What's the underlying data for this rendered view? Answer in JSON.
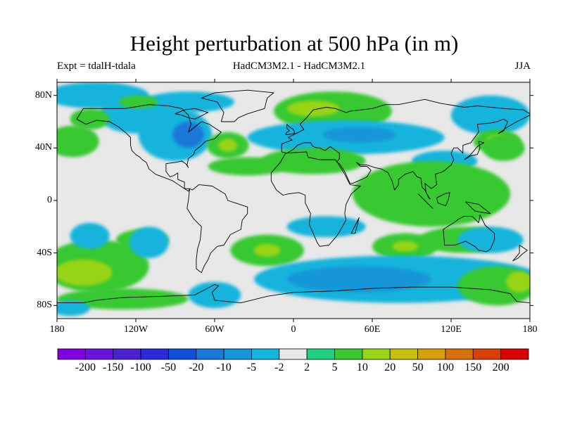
{
  "title": "Height perturbation at 500 hPa (in m)",
  "expt": "Expt = tdalH-tdala",
  "models": "HadCM3M2.1 - HadCM3M2.1",
  "season": "JJA",
  "map": {
    "lon_range": [
      -180,
      180
    ],
    "lat_range": [
      -90,
      90
    ],
    "background_color": "#e8e8e8",
    "lat_ticks": [
      {
        "value": 80,
        "label": "80N"
      },
      {
        "value": 40,
        "label": "40N"
      },
      {
        "value": 0,
        "label": "0"
      },
      {
        "value": -40,
        "label": "40S"
      },
      {
        "value": -80,
        "label": "80S"
      }
    ],
    "lon_ticks": [
      {
        "value": -180,
        "label": "180"
      },
      {
        "value": -120,
        "label": "120W"
      },
      {
        "value": -60,
        "label": "60W"
      },
      {
        "value": 0,
        "label": "0"
      },
      {
        "value": 60,
        "label": "60E"
      },
      {
        "value": 120,
        "label": "120E"
      },
      {
        "value": 180,
        "label": "180"
      }
    ]
  },
  "colorbar": {
    "colors": [
      "#8000e0",
      "#6a14d8",
      "#4b22cc",
      "#2a2ad6",
      "#1050d8",
      "#1a78d8",
      "#1496d8",
      "#14b4dc",
      "#e8e8e8",
      "#20d080",
      "#38c830",
      "#98d418",
      "#c8c010",
      "#d8a008",
      "#d87008",
      "#d84008",
      "#d80000"
    ],
    "labels": [
      "-200",
      "-150",
      "-100",
      "-50",
      "-20",
      "-10",
      "-5",
      "-2",
      "2",
      "5",
      "10",
      "20",
      "50",
      "100",
      "150",
      "200"
    ]
  },
  "field": [
    {
      "lon": -150,
      "lat": 80,
      "rx": 40,
      "ry": 10,
      "level": 7
    },
    {
      "lon": -80,
      "lat": 75,
      "rx": 35,
      "ry": 8,
      "level": 7
    },
    {
      "lon": -120,
      "lat": 65,
      "rx": 28,
      "ry": 14,
      "level": 7
    },
    {
      "lon": -90,
      "lat": 50,
      "rx": 28,
      "ry": 20,
      "level": 7
    },
    {
      "lon": -80,
      "lat": 50,
      "rx": 12,
      "ry": 10,
      "level": 5
    },
    {
      "lon": -168,
      "lat": 45,
      "rx": 20,
      "ry": 12,
      "level": 10
    },
    {
      "lon": -155,
      "lat": 62,
      "rx": 15,
      "ry": 8,
      "level": 10
    },
    {
      "lon": -118,
      "lat": 75,
      "rx": 15,
      "ry": 5,
      "level": 10
    },
    {
      "lon": -50,
      "lat": 42,
      "rx": 16,
      "ry": 10,
      "level": 10
    },
    {
      "lon": -50,
      "lat": 42,
      "rx": 7,
      "ry": 5,
      "level": 11
    },
    {
      "lon": 30,
      "lat": 68,
      "rx": 45,
      "ry": 15,
      "level": 10
    },
    {
      "lon": 15,
      "lat": 70,
      "rx": 20,
      "ry": 6,
      "level": 11
    },
    {
      "lon": 40,
      "lat": 48,
      "rx": 75,
      "ry": 13,
      "level": 7
    },
    {
      "lon": 50,
      "lat": 50,
      "rx": 28,
      "ry": 6,
      "level": 6
    },
    {
      "lon": 150,
      "lat": 65,
      "rx": 30,
      "ry": 15,
      "level": 7
    },
    {
      "lon": 155,
      "lat": 45,
      "rx": 18,
      "ry": 9,
      "level": 10
    },
    {
      "lon": 155,
      "lat": 45,
      "rx": 8,
      "ry": 5,
      "level": 11
    },
    {
      "lon": 115,
      "lat": 30,
      "rx": 25,
      "ry": 8,
      "level": 7
    },
    {
      "lon": -35,
      "lat": 26,
      "rx": 30,
      "ry": 7,
      "level": 10
    },
    {
      "lon": 15,
      "lat": 30,
      "rx": 40,
      "ry": 10,
      "level": 10
    },
    {
      "lon": 105,
      "lat": 5,
      "rx": 60,
      "ry": 25,
      "level": 10
    },
    {
      "lon": 160,
      "lat": 40,
      "rx": 16,
      "ry": 10,
      "level": 10
    },
    {
      "lon": 25,
      "lat": -20,
      "rx": 30,
      "ry": 8,
      "level": 7
    },
    {
      "lon": -150,
      "lat": -50,
      "rx": 40,
      "ry": 20,
      "level": 10
    },
    {
      "lon": -160,
      "lat": -55,
      "rx": 22,
      "ry": 10,
      "level": 11
    },
    {
      "lon": -115,
      "lat": -30,
      "rx": 20,
      "ry": 8,
      "level": 10
    },
    {
      "lon": -110,
      "lat": -32,
      "rx": 15,
      "ry": 12,
      "level": 7
    },
    {
      "lon": -155,
      "lat": -27,
      "rx": 15,
      "ry": 10,
      "level": 7
    },
    {
      "lon": -20,
      "lat": -38,
      "rx": 28,
      "ry": 12,
      "level": 10
    },
    {
      "lon": -20,
      "lat": -38,
      "rx": 10,
      "ry": 5,
      "level": 11
    },
    {
      "lon": 85,
      "lat": -35,
      "rx": 25,
      "ry": 10,
      "level": 10
    },
    {
      "lon": 85,
      "lat": -35,
      "rx": 10,
      "ry": 4,
      "level": 11
    },
    {
      "lon": 130,
      "lat": -30,
      "rx": 35,
      "ry": 10,
      "level": 10
    },
    {
      "lon": 150,
      "lat": -30,
      "rx": 25,
      "ry": 10,
      "level": 7
    },
    {
      "lon": 80,
      "lat": -60,
      "rx": 110,
      "ry": 18,
      "level": 7
    },
    {
      "lon": 50,
      "lat": -60,
      "rx": 55,
      "ry": 10,
      "level": 6
    },
    {
      "lon": 155,
      "lat": -65,
      "rx": 30,
      "ry": 15,
      "level": 10
    },
    {
      "lon": 172,
      "lat": -62,
      "rx": 10,
      "ry": 8,
      "level": 11
    },
    {
      "lon": -130,
      "lat": -75,
      "rx": 50,
      "ry": 8,
      "level": 10
    },
    {
      "lon": -60,
      "lat": -72,
      "rx": 20,
      "ry": 10,
      "level": 7
    },
    {
      "lon": -170,
      "lat": -82,
      "rx": 15,
      "ry": 6,
      "level": 7
    }
  ],
  "coastlines": [
    [
      [
        -165,
        62
      ],
      [
        -160,
        70
      ],
      [
        -140,
        70
      ],
      [
        -128,
        70
      ],
      [
        -110,
        73
      ],
      [
        -95,
        72
      ],
      [
        -85,
        70
      ],
      [
        -80,
        65
      ],
      [
        -78,
        58
      ],
      [
        -80,
        52
      ],
      [
        -70,
        60
      ],
      [
        -64,
        58
      ],
      [
        -55,
        52
      ],
      [
        -60,
        47
      ],
      [
        -67,
        45
      ],
      [
        -70,
        42
      ],
      [
        -75,
        38
      ],
      [
        -76,
        35
      ],
      [
        -80,
        32
      ],
      [
        -81,
        27
      ],
      [
        -80,
        25
      ],
      [
        -82,
        28
      ],
      [
        -85,
        30
      ],
      [
        -90,
        29
      ],
      [
        -97,
        28
      ],
      [
        -97,
        22
      ],
      [
        -94,
        18
      ],
      [
        -91,
        19
      ],
      [
        -88,
        21
      ],
      [
        -88,
        16
      ],
      [
        -83,
        14
      ],
      [
        -83,
        9
      ],
      [
        -79,
        9
      ],
      [
        -80,
        7
      ],
      [
        -86,
        11
      ],
      [
        -92,
        15
      ],
      [
        -105,
        20
      ],
      [
        -110,
        24
      ],
      [
        -112,
        29
      ],
      [
        -115,
        31
      ],
      [
        -117,
        33
      ],
      [
        -120,
        35
      ],
      [
        -123,
        38
      ],
      [
        -124,
        42
      ],
      [
        -124,
        48
      ],
      [
        -127,
        51
      ],
      [
        -133,
        56
      ],
      [
        -140,
        60
      ],
      [
        -150,
        61
      ],
      [
        -158,
        58
      ],
      [
        -165,
        62
      ]
    ],
    [
      [
        -79,
        9
      ],
      [
        -77,
        8
      ],
      [
        -72,
        12
      ],
      [
        -62,
        11
      ],
      [
        -52,
        5
      ],
      [
        -50,
        0
      ],
      [
        -44,
        -2
      ],
      [
        -35,
        -5
      ],
      [
        -35,
        -10
      ],
      [
        -39,
        -15
      ],
      [
        -40,
        -22
      ],
      [
        -48,
        -26
      ],
      [
        -53,
        -34
      ],
      [
        -58,
        -35
      ],
      [
        -63,
        -40
      ],
      [
        -65,
        -45
      ],
      [
        -68,
        -50
      ],
      [
        -70,
        -55
      ],
      [
        -74,
        -52
      ],
      [
        -74,
        -45
      ],
      [
        -73,
        -37
      ],
      [
        -71,
        -30
      ],
      [
        -70,
        -20
      ],
      [
        -76,
        -14
      ],
      [
        -81,
        -6
      ],
      [
        -80,
        0
      ],
      [
        -79,
        9
      ]
    ],
    [
      [
        -17,
        15
      ],
      [
        -17,
        21
      ],
      [
        -10,
        29
      ],
      [
        -6,
        36
      ],
      [
        10,
        37
      ],
      [
        11,
        33
      ],
      [
        20,
        31
      ],
      [
        32,
        31
      ],
      [
        34,
        28
      ],
      [
        39,
        20
      ],
      [
        43,
        12
      ],
      [
        51,
        11
      ],
      [
        44,
        5
      ],
      [
        40,
        -3
      ],
      [
        39,
        -10
      ],
      [
        40,
        -15
      ],
      [
        35,
        -24
      ],
      [
        33,
        -27
      ],
      [
        27,
        -34
      ],
      [
        20,
        -35
      ],
      [
        18,
        -32
      ],
      [
        12,
        -18
      ],
      [
        13,
        -10
      ],
      [
        9,
        -2
      ],
      [
        9,
        4
      ],
      [
        4,
        6
      ],
      [
        -4,
        5
      ],
      [
        -8,
        4
      ],
      [
        -13,
        8
      ],
      [
        -17,
        15
      ]
    ],
    [
      [
        -9,
        37
      ],
      [
        -9,
        43
      ],
      [
        -1,
        46
      ],
      [
        -4,
        48
      ],
      [
        2,
        51
      ],
      [
        8,
        54
      ],
      [
        5,
        58
      ],
      [
        10,
        63
      ],
      [
        15,
        69
      ],
      [
        25,
        71
      ],
      [
        32,
        70
      ],
      [
        40,
        67
      ],
      [
        43,
        68
      ],
      [
        60,
        70
      ],
      [
        70,
        73
      ],
      [
        80,
        73
      ],
      [
        100,
        77
      ],
      [
        112,
        74
      ],
      [
        130,
        71
      ],
      [
        140,
        72
      ],
      [
        160,
        70
      ],
      [
        175,
        69
      ],
      [
        180,
        66
      ]
    ],
    [
      [
        -9,
        37
      ],
      [
        -5,
        36
      ],
      [
        0,
        39
      ],
      [
        3,
        42
      ],
      [
        8,
        44
      ],
      [
        13,
        44
      ],
      [
        15,
        41
      ],
      [
        18,
        40
      ],
      [
        20,
        40
      ],
      [
        24,
        38
      ],
      [
        28,
        41
      ],
      [
        35,
        36
      ],
      [
        35,
        32
      ],
      [
        33,
        29
      ],
      [
        35,
        28
      ],
      [
        39,
        22
      ],
      [
        43,
        13
      ],
      [
        45,
        13
      ],
      [
        52,
        16
      ],
      [
        56,
        18
      ],
      [
        59,
        23
      ],
      [
        56,
        26
      ],
      [
        51,
        26
      ],
      [
        48,
        29
      ],
      [
        51,
        27
      ],
      [
        56,
        27
      ],
      [
        62,
        25
      ],
      [
        67,
        24
      ],
      [
        72,
        21
      ],
      [
        75,
        15
      ],
      [
        77,
        8
      ],
      [
        80,
        12
      ],
      [
        80,
        16
      ],
      [
        85,
        20
      ],
      [
        91,
        22
      ],
      [
        94,
        18
      ],
      [
        97,
        17
      ],
      [
        98,
        10
      ],
      [
        100,
        8
      ],
      [
        103,
        2
      ],
      [
        104,
        1
      ],
      [
        101,
        6
      ],
      [
        100,
        13
      ],
      [
        105,
        9
      ],
      [
        109,
        12
      ],
      [
        108,
        20
      ],
      [
        114,
        22
      ],
      [
        120,
        27
      ],
      [
        122,
        31
      ],
      [
        120,
        36
      ],
      [
        122,
        40
      ],
      [
        125,
        40
      ],
      [
        129,
        36
      ],
      [
        129,
        42
      ],
      [
        135,
        44
      ],
      [
        141,
        52
      ],
      [
        140,
        58
      ],
      [
        150,
        59
      ],
      [
        155,
        60
      ],
      [
        160,
        62
      ],
      [
        163,
        60
      ],
      [
        160,
        53
      ],
      [
        156,
        51
      ],
      [
        163,
        56
      ],
      [
        170,
        60
      ],
      [
        180,
        65
      ]
    ],
    [
      [
        114,
        -22
      ],
      [
        115,
        -34
      ],
      [
        123,
        -34
      ],
      [
        131,
        -31
      ],
      [
        138,
        -35
      ],
      [
        141,
        -38
      ],
      [
        147,
        -39
      ],
      [
        150,
        -37
      ],
      [
        153,
        -30
      ],
      [
        153,
        -25
      ],
      [
        146,
        -19
      ],
      [
        142,
        -11
      ],
      [
        141,
        -17
      ],
      [
        136,
        -12
      ],
      [
        130,
        -12
      ],
      [
        126,
        -14
      ],
      [
        122,
        -17
      ],
      [
        114,
        -22
      ]
    ],
    [
      [
        -55,
        60
      ],
      [
        -45,
        60
      ],
      [
        -42,
        63
      ],
      [
        -35,
        66
      ],
      [
        -22,
        70
      ],
      [
        -20,
        78
      ],
      [
        -15,
        82
      ],
      [
        -35,
        84
      ],
      [
        -60,
        82
      ],
      [
        -70,
        78
      ],
      [
        -58,
        75
      ],
      [
        -55,
        70
      ],
      [
        -53,
        67
      ],
      [
        -55,
        60
      ]
    ],
    [
      [
        -180,
        -78
      ],
      [
        -160,
        -78
      ],
      [
        -150,
        -76
      ],
      [
        -130,
        -74
      ],
      [
        -100,
        -73
      ],
      [
        -75,
        -72
      ],
      [
        -60,
        -64
      ],
      [
        -57,
        -65
      ],
      [
        -62,
        -70
      ],
      [
        -60,
        -76
      ],
      [
        -40,
        -78
      ],
      [
        -20,
        -73
      ],
      [
        0,
        -70
      ],
      [
        30,
        -69
      ],
      [
        60,
        -67
      ],
      [
        90,
        -66
      ],
      [
        120,
        -66
      ],
      [
        150,
        -68
      ],
      [
        165,
        -71
      ],
      [
        170,
        -77
      ],
      [
        180,
        -78
      ]
    ],
    [
      [
        -6,
        50
      ],
      [
        1,
        51
      ],
      [
        0,
        54
      ],
      [
        -3,
        56
      ],
      [
        -5,
        58
      ],
      [
        -5,
        55
      ],
      [
        -3,
        53
      ],
      [
        -5,
        52
      ],
      [
        -6,
        50
      ]
    ],
    [
      [
        130,
        31
      ],
      [
        135,
        34
      ],
      [
        140,
        35
      ],
      [
        142,
        40
      ],
      [
        141,
        45
      ],
      [
        145,
        44
      ],
      [
        140,
        41
      ],
      [
        135,
        35
      ],
      [
        130,
        31
      ]
    ],
    [
      [
        95,
        5
      ],
      [
        106,
        -6
      ],
      [
        104,
        -4
      ],
      [
        98,
        2
      ],
      [
        95,
        5
      ]
    ],
    [
      [
        109,
        2
      ],
      [
        115,
        5
      ],
      [
        119,
        6
      ],
      [
        118,
        1
      ],
      [
        116,
        -4
      ],
      [
        110,
        -2
      ],
      [
        109,
        2
      ]
    ],
    [
      [
        131,
        -1
      ],
      [
        141,
        -3
      ],
      [
        150,
        -10
      ],
      [
        143,
        -9
      ],
      [
        138,
        -8
      ],
      [
        131,
        -1
      ]
    ],
    [
      [
        44,
        -25
      ],
      [
        49,
        -15
      ],
      [
        50,
        -13
      ],
      [
        47,
        -25
      ],
      [
        44,
        -25
      ]
    ],
    [
      [
        172,
        -34
      ],
      [
        178,
        -38
      ],
      [
        174,
        -41
      ],
      [
        171,
        -44
      ],
      [
        167,
        -46
      ],
      [
        172,
        -40
      ],
      [
        172,
        -34
      ]
    ],
    [
      [
        -80,
        63
      ],
      [
        -85,
        65
      ],
      [
        -90,
        66
      ],
      [
        -83,
        69
      ],
      [
        -75,
        70
      ],
      [
        -65,
        67
      ],
      [
        -75,
        62
      ],
      [
        -80,
        63
      ]
    ]
  ]
}
